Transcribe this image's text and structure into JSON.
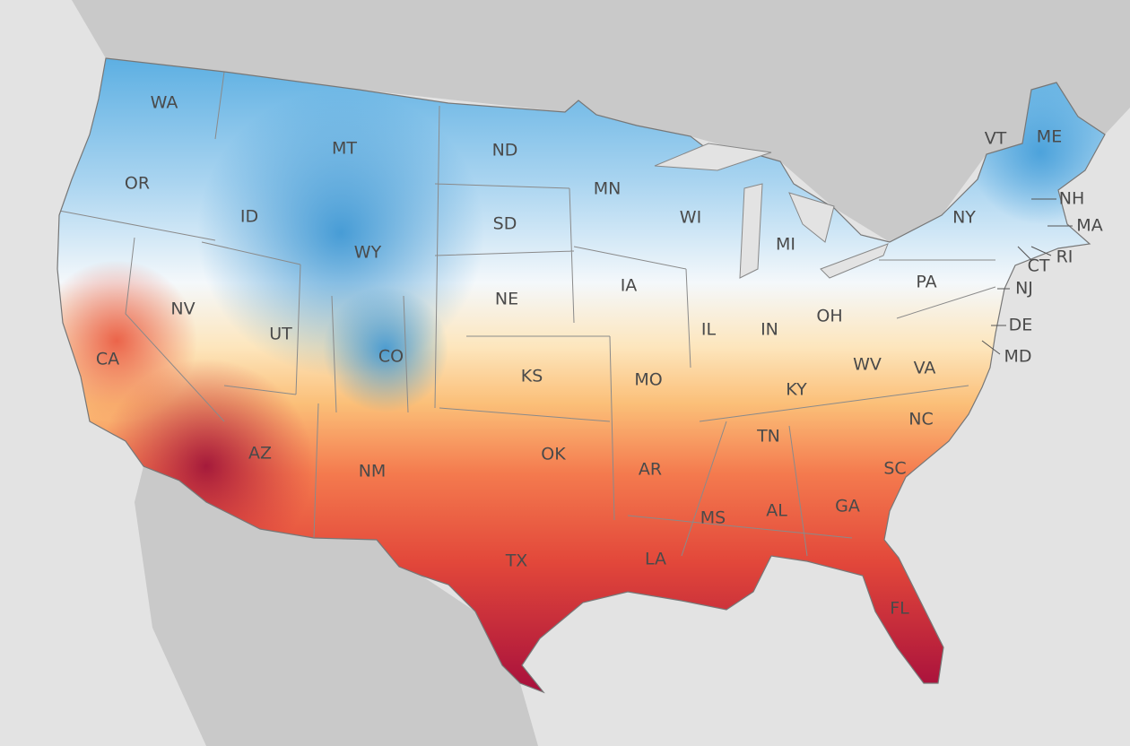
{
  "labels": [
    "WA",
    "OR",
    "ID",
    "MT",
    "ND",
    "MN",
    "WI",
    "MI",
    "NY",
    "VT",
    "ME",
    "NH",
    "MA",
    "CT",
    "RI",
    "SD",
    "WY",
    "NE",
    "IA",
    "PA",
    "NJ",
    "DE",
    "MD",
    "OH",
    "IN",
    "IL",
    "NV",
    "UT",
    "CA",
    "CO",
    "KS",
    "MO",
    "KY",
    "WV",
    "VA",
    "NC",
    "TN",
    "AR",
    "OK",
    "AZ",
    "NM",
    "TX",
    "LA",
    "MS",
    "AL",
    "GA",
    "SC",
    "FL"
  ]
}
